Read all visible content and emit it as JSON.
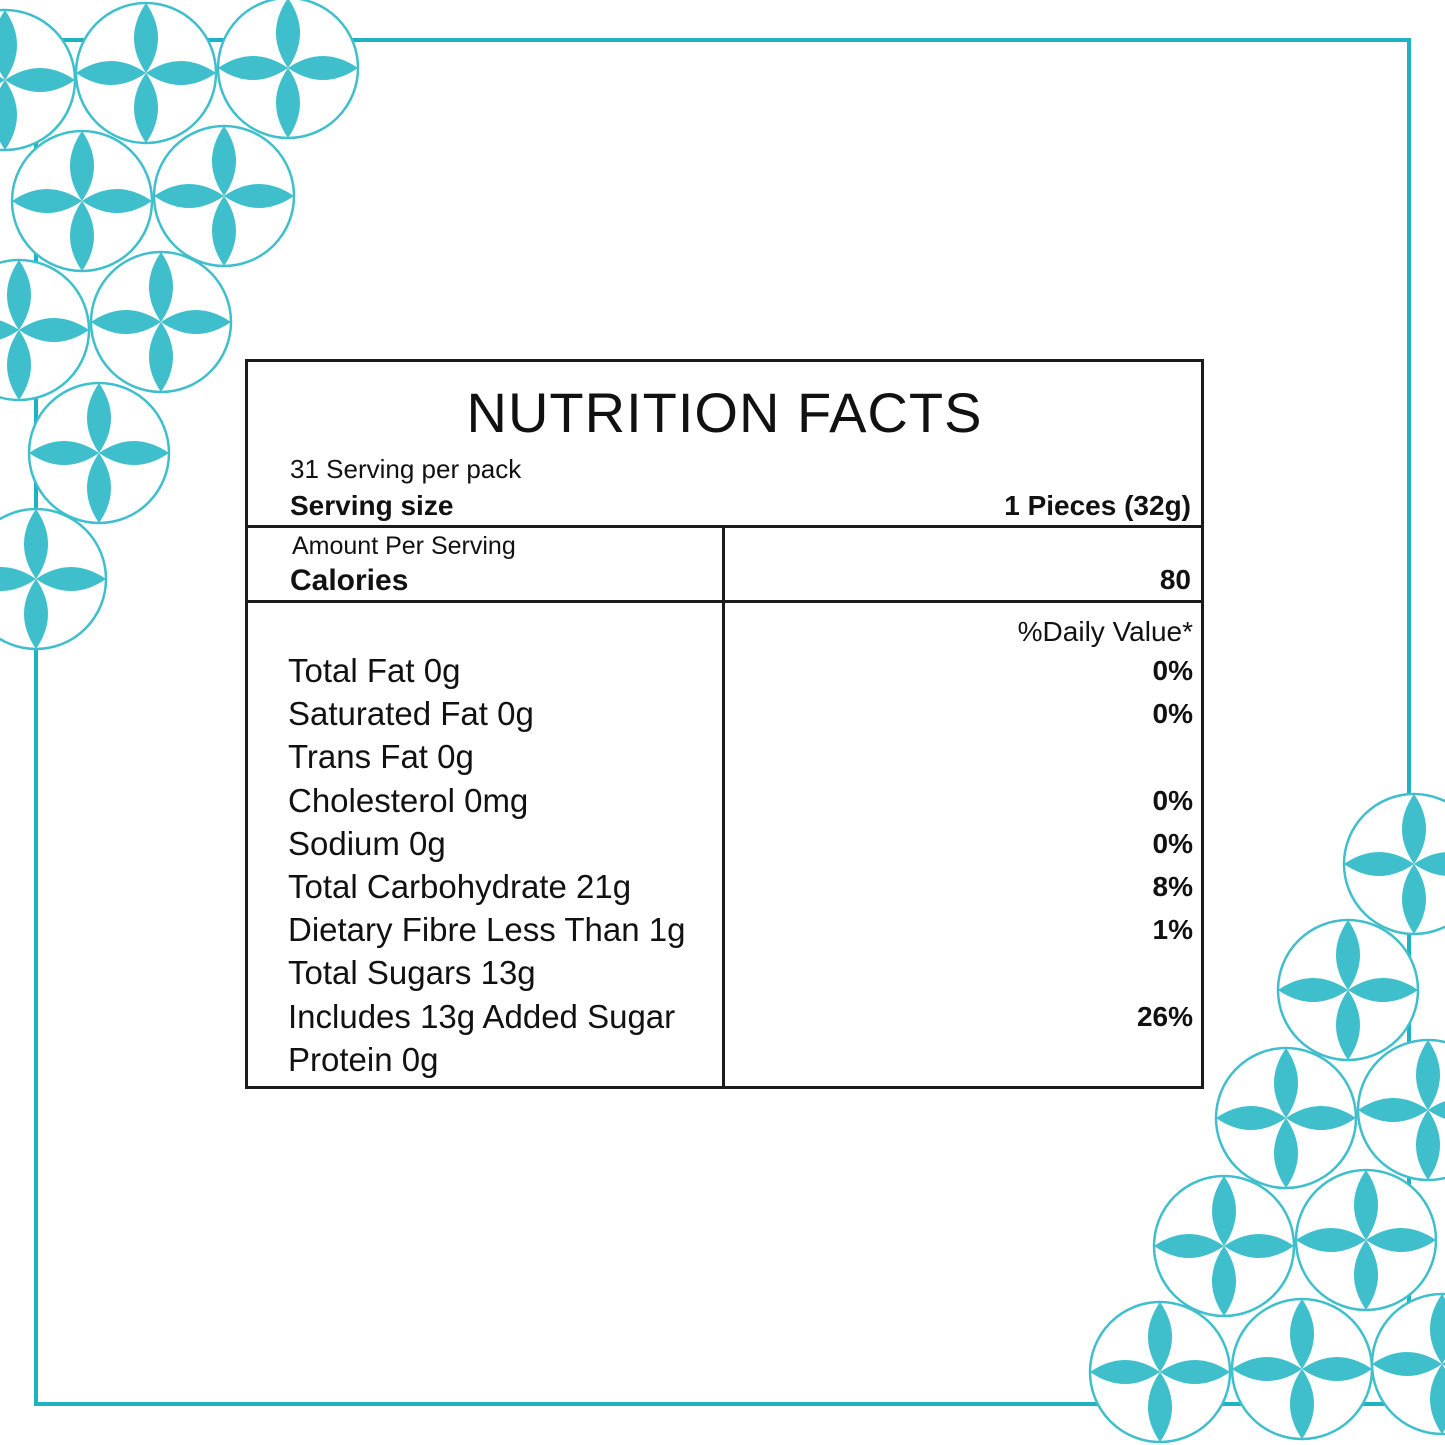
{
  "colors": {
    "frame": "#1fb3c1",
    "petal": "#3fbfcc",
    "ring": "#3fbfcc",
    "rule": "#1b1b1b",
    "text": "#111111"
  },
  "decor": {
    "frame": "teal-rectangular-border",
    "ornament": "four-petal-circle-pattern"
  },
  "label": {
    "title": "NUTRITION FACTS",
    "servings_per_pack": "31 Serving per pack",
    "serving_size_label": "Serving size",
    "serving_size_value": "1 Pieces (32g)",
    "amount_per_serving": "Amount Per Serving",
    "calories_label": "Calories",
    "calories_value": "80",
    "daily_value_header": "%Daily Value*",
    "nutrients": [
      {
        "name": "Total Fat 0g",
        "dv": "0%"
      },
      {
        "name": "Saturated Fat 0g",
        "dv": "0%"
      },
      {
        "name": "Trans Fat 0g",
        "dv": ""
      },
      {
        "name": "Cholesterol 0mg",
        "dv": "0%"
      },
      {
        "name": "Sodium 0g",
        "dv": "0%"
      },
      {
        "name": "Total Carbohydrate 21g",
        "dv": "8%"
      },
      {
        "name": "Dietary Fibre Less Than 1g",
        "dv": "1%"
      },
      {
        "name": "Total Sugars 13g",
        "dv": ""
      },
      {
        "name": "Includes 13g Added Sugar",
        "dv": "26%"
      },
      {
        "name": "Protein 0g",
        "dv": ""
      }
    ]
  }
}
